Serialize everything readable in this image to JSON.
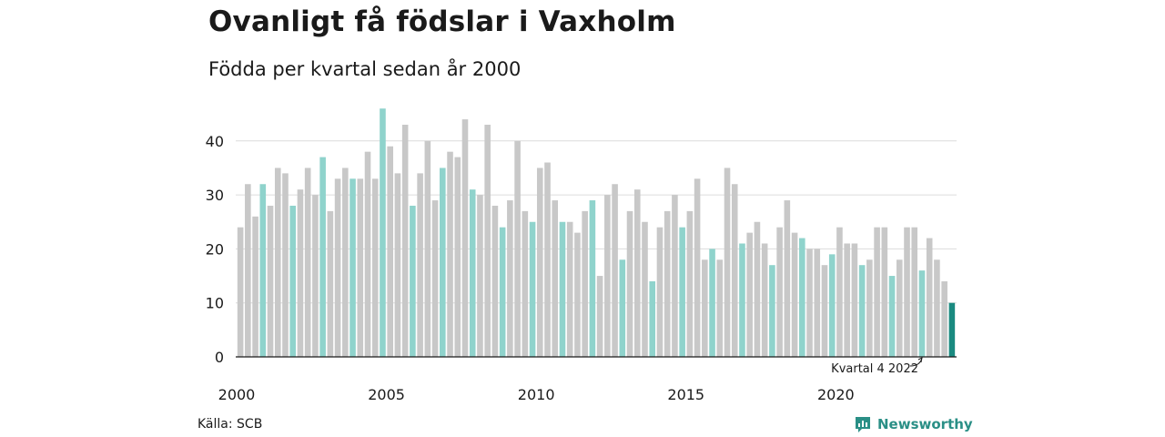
{
  "title": "Ovanligt få födslar i Vaxholm",
  "subtitle": "Födda per kvartal sedan år 2000",
  "source": "Källa: SCB",
  "brand": {
    "name": "Newsworthy",
    "icon": "newsworthy-logo-icon",
    "color": "#2a8f86"
  },
  "chart_data": {
    "type": "bar",
    "title": "Ovanligt få födslar i Vaxholm",
    "subtitle": "Födda per kvartal sedan år 2000",
    "xlabel": "",
    "ylabel": "",
    "ylim": [
      0,
      46
    ],
    "yticks": [
      0,
      10,
      20,
      30,
      40
    ],
    "xticks": [
      {
        "year": 2000,
        "label": "2000"
      },
      {
        "year": 2005,
        "label": "2005"
      },
      {
        "year": 2010,
        "label": "2010"
      },
      {
        "year": 2015,
        "label": "2015"
      },
      {
        "year": 2020,
        "label": "2020"
      }
    ],
    "grid": true,
    "start_year": 2000,
    "start_quarter": 1,
    "values": [
      24,
      32,
      26,
      32,
      28,
      35,
      34,
      28,
      31,
      35,
      30,
      37,
      27,
      33,
      35,
      33,
      33,
      38,
      33,
      46,
      39,
      34,
      43,
      28,
      34,
      40,
      29,
      35,
      38,
      37,
      44,
      31,
      30,
      43,
      28,
      24,
      29,
      40,
      27,
      25,
      35,
      36,
      29,
      25,
      25,
      23,
      27,
      29,
      15,
      30,
      32,
      18,
      27,
      31,
      25,
      14,
      24,
      27,
      30,
      24,
      27,
      33,
      18,
      20,
      18,
      35,
      32,
      21,
      23,
      25,
      21,
      17,
      24,
      29,
      23,
      22,
      20,
      20,
      17,
      19,
      24,
      21,
      21,
      17,
      18,
      24,
      24,
      15,
      18,
      24,
      24,
      16,
      22,
      18,
      14,
      10
    ],
    "colors": {
      "other_quarters": "#c8c8c8",
      "quarter_4": "#8fd3cc",
      "latest": "#1a8a80"
    },
    "annotation": {
      "text": "Kvartal 4 2022",
      "target_index": 91
    }
  }
}
